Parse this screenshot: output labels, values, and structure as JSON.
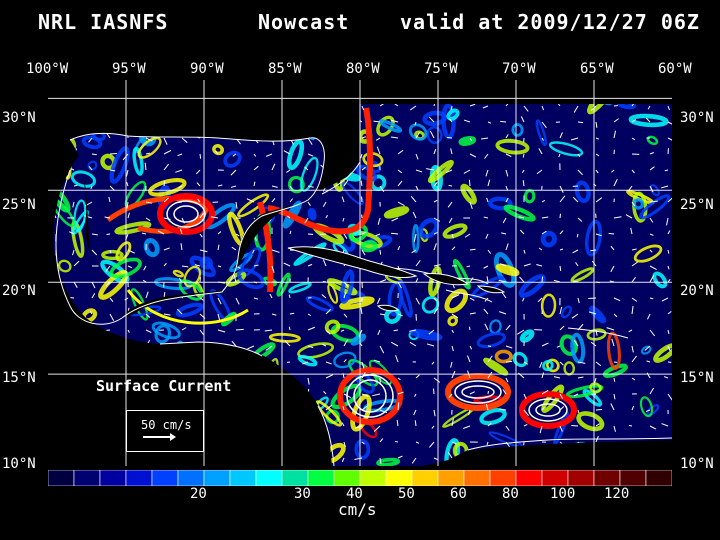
{
  "header": {
    "model": "NRL IASNFS",
    "product": "Nowcast",
    "valid": "valid at 2009/12/27 06Z"
  },
  "map": {
    "lon_labels": [
      "100°W",
      "95°W",
      "90°W",
      "85°W",
      "80°W",
      "75°W",
      "70°W",
      "65°W",
      "60°W"
    ],
    "lat_labels": [
      "30°N",
      "25°N",
      "20°N",
      "15°N",
      "10°N"
    ],
    "lon_range": [
      -100,
      -60
    ],
    "lat_range": [
      10,
      31
    ],
    "grid": true,
    "colors": {
      "water": "#000060",
      "land": "#000000",
      "coastline": "#ffffff",
      "grid": "#ffffff"
    },
    "field_label": "Surface Current",
    "scale_label": "50 cm/s"
  },
  "colorbar": {
    "unit": "cm/s",
    "ticks": [
      "20",
      "30",
      "40",
      "50",
      "60",
      "80",
      "100",
      "120"
    ],
    "colors": [
      "#000040",
      "#000070",
      "#0000a0",
      "#0010d0",
      "#0040ff",
      "#0070ff",
      "#00a0ff",
      "#00c8ff",
      "#00ffff",
      "#00e0a0",
      "#00ff40",
      "#60ff00",
      "#c0ff00",
      "#ffff00",
      "#ffd000",
      "#ffa000",
      "#ff7000",
      "#ff4000",
      "#ff0000",
      "#d00000",
      "#a00000",
      "#700000",
      "#500000",
      "#300000"
    ]
  }
}
